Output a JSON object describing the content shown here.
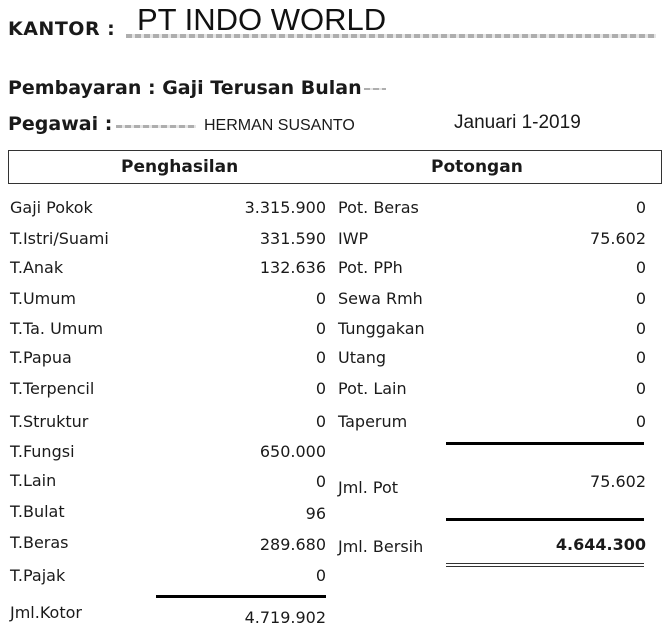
{
  "header": {
    "kantor_label": "KANTOR :",
    "company": "PT INDO WORLD",
    "payment_label": "Pembayaran : Gaji Terusan Bulan",
    "employee_label": "Pegawai :",
    "employee_name": "HERMAN SUSANTO",
    "period": "Januari 1-2019"
  },
  "table": {
    "income_header": "Penghasilan",
    "deduction_header": "Potongan",
    "income": [
      {
        "label": "Gaji Pokok",
        "value": "3.315.900"
      },
      {
        "label": "T.Istri/Suami",
        "value": "331.590"
      },
      {
        "label": "T.Anak",
        "value": "132.636"
      },
      {
        "label": "T.Umum",
        "value": "0"
      },
      {
        "label": "T.Ta. Umum",
        "value": "0"
      },
      {
        "label": "T.Papua",
        "value": "0"
      },
      {
        "label": "T.Terpencil",
        "value": "0"
      },
      {
        "label": "T.Struktur",
        "value": "0"
      },
      {
        "label": "T.Fungsi",
        "value": "650.000"
      },
      {
        "label": "T.Lain",
        "value": "0"
      },
      {
        "label": "T.Bulat",
        "value": "96"
      },
      {
        "label": "T.Beras",
        "value": "289.680"
      },
      {
        "label": "T.Pajak",
        "value": "0"
      }
    ],
    "deductions": [
      {
        "label": "Pot. Beras",
        "value": "0"
      },
      {
        "label": "IWP",
        "value": "75.602"
      },
      {
        "label": "Pot. PPh",
        "value": "0"
      },
      {
        "label": "Sewa Rmh",
        "value": "0"
      },
      {
        "label": "Tunggakan",
        "value": "0"
      },
      {
        "label": "Utang",
        "value": "0"
      },
      {
        "label": "Pot. Lain",
        "value": "0"
      },
      {
        "label": "Taperum",
        "value": "0"
      }
    ],
    "total_income": {
      "label": "Jml.Kotor",
      "value": "4.719.902"
    },
    "total_deductions": {
      "label": "Jml. Pot",
      "value": "75.602"
    },
    "net": {
      "label": "Jml. Bersih",
      "value": "4.644.300"
    }
  }
}
